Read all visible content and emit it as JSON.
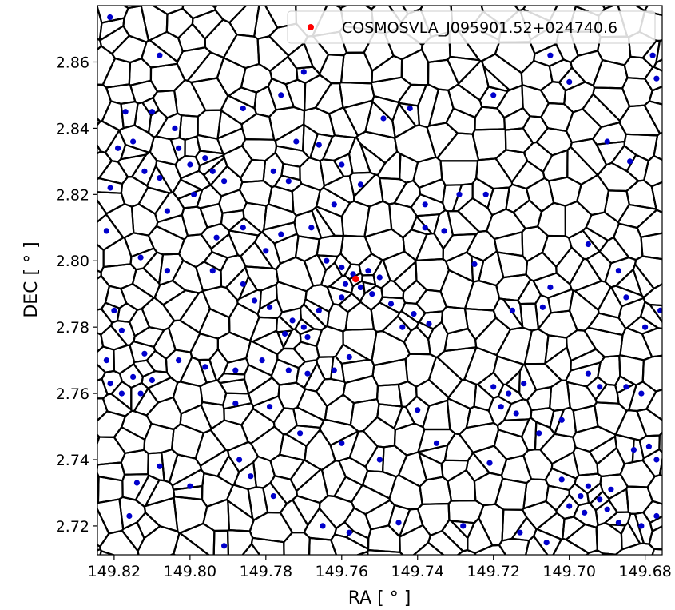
{
  "chart_data": {
    "type": "scatter",
    "title": "",
    "xlabel": "RA [ ° ]",
    "ylabel": "DEC [ ° ]",
    "xlim": [
      149.8244,
      149.6755
    ],
    "ylim": [
      2.7113,
      2.877
    ],
    "x_ticks": [
      "149.82",
      "149.80",
      "149.78",
      "149.76",
      "149.74",
      "149.72",
      "149.70",
      "149.68"
    ],
    "y_ticks": [
      "2.72",
      "2.74",
      "2.76",
      "2.78",
      "2.80",
      "2.82",
      "2.84",
      "2.86"
    ],
    "legend_position": "top-right",
    "grid": false,
    "background_overlay": "voronoi-tessellation",
    "colors": {
      "galaxies": "#0000cc",
      "target": "#ff0000",
      "edges": "#000000"
    },
    "series": [
      {
        "name": "COSMOSVLA_J095901.52+024740.6",
        "color": "#ff0000",
        "points": [
          {
            "x": 149.7563,
            "y": 2.7945
          }
        ]
      },
      {
        "name": "",
        "color": "#0000cc",
        "points": [
          {
            "x": 149.8211,
            "y": 2.8735
          },
          {
            "x": 149.817,
            "y": 2.845
          },
          {
            "x": 149.81,
            "y": 2.845
          },
          {
            "x": 149.808,
            "y": 2.862
          },
          {
            "x": 149.803,
            "y": 2.834
          },
          {
            "x": 149.8,
            "y": 2.829
          },
          {
            "x": 149.796,
            "y": 2.831
          },
          {
            "x": 149.794,
            "y": 2.827
          },
          {
            "x": 149.808,
            "y": 2.825
          },
          {
            "x": 149.812,
            "y": 2.827
          },
          {
            "x": 149.804,
            "y": 2.84
          },
          {
            "x": 149.799,
            "y": 2.82
          },
          {
            "x": 149.819,
            "y": 2.834
          },
          {
            "x": 149.821,
            "y": 2.822
          },
          {
            "x": 149.822,
            "y": 2.809
          },
          {
            "x": 149.815,
            "y": 2.836
          },
          {
            "x": 149.806,
            "y": 2.815
          },
          {
            "x": 149.791,
            "y": 2.824
          },
          {
            "x": 149.786,
            "y": 2.846
          },
          {
            "x": 149.776,
            "y": 2.85
          },
          {
            "x": 149.77,
            "y": 2.857
          },
          {
            "x": 149.772,
            "y": 2.836
          },
          {
            "x": 149.778,
            "y": 2.827
          },
          {
            "x": 149.774,
            "y": 2.824
          },
          {
            "x": 149.766,
            "y": 2.835
          },
          {
            "x": 149.76,
            "y": 2.829
          },
          {
            "x": 149.755,
            "y": 2.823
          },
          {
            "x": 149.762,
            "y": 2.817
          },
          {
            "x": 149.749,
            "y": 2.843
          },
          {
            "x": 149.742,
            "y": 2.846
          },
          {
            "x": 149.738,
            "y": 2.817
          },
          {
            "x": 149.733,
            "y": 2.809
          },
          {
            "x": 149.72,
            "y": 2.85
          },
          {
            "x": 149.705,
            "y": 2.862
          },
          {
            "x": 149.69,
            "y": 2.836
          },
          {
            "x": 149.684,
            "y": 2.83
          },
          {
            "x": 149.678,
            "y": 2.862
          },
          {
            "x": 149.677,
            "y": 2.855
          },
          {
            "x": 149.7,
            "y": 2.854
          },
          {
            "x": 149.729,
            "y": 2.82
          },
          {
            "x": 149.813,
            "y": 2.801
          },
          {
            "x": 149.806,
            "y": 2.797
          },
          {
            "x": 149.793,
            "y": 2.807
          },
          {
            "x": 149.786,
            "y": 2.81
          },
          {
            "x": 149.78,
            "y": 2.803
          },
          {
            "x": 149.776,
            "y": 2.808
          },
          {
            "x": 149.768,
            "y": 2.81
          },
          {
            "x": 149.764,
            "y": 2.8
          },
          {
            "x": 149.76,
            "y": 2.798
          },
          {
            "x": 149.759,
            "y": 2.793
          },
          {
            "x": 149.757,
            "y": 2.796
          },
          {
            "x": 149.755,
            "y": 2.792
          },
          {
            "x": 149.753,
            "y": 2.797
          },
          {
            "x": 149.752,
            "y": 2.79
          },
          {
            "x": 149.76,
            "y": 2.789
          },
          {
            "x": 149.75,
            "y": 2.795
          },
          {
            "x": 149.747,
            "y": 2.787
          },
          {
            "x": 149.766,
            "y": 2.785
          },
          {
            "x": 149.77,
            "y": 2.78
          },
          {
            "x": 149.773,
            "y": 2.782
          },
          {
            "x": 149.775,
            "y": 2.778
          },
          {
            "x": 149.769,
            "y": 2.777
          },
          {
            "x": 149.779,
            "y": 2.786
          },
          {
            "x": 149.783,
            "y": 2.788
          },
          {
            "x": 149.786,
            "y": 2.793
          },
          {
            "x": 149.794,
            "y": 2.797
          },
          {
            "x": 149.741,
            "y": 2.784
          },
          {
            "x": 149.737,
            "y": 2.781
          },
          {
            "x": 149.744,
            "y": 2.78
          },
          {
            "x": 149.738,
            "y": 2.81
          },
          {
            "x": 149.725,
            "y": 2.799
          },
          {
            "x": 149.715,
            "y": 2.785
          },
          {
            "x": 149.705,
            "y": 2.792
          },
          {
            "x": 149.707,
            "y": 2.786
          },
          {
            "x": 149.687,
            "y": 2.797
          },
          {
            "x": 149.685,
            "y": 2.789
          },
          {
            "x": 149.68,
            "y": 2.78
          },
          {
            "x": 149.676,
            "y": 2.785
          },
          {
            "x": 149.695,
            "y": 2.805
          },
          {
            "x": 149.722,
            "y": 2.82
          },
          {
            "x": 149.82,
            "y": 2.785
          },
          {
            "x": 149.818,
            "y": 2.779
          },
          {
            "x": 149.822,
            "y": 2.77
          },
          {
            "x": 149.821,
            "y": 2.763
          },
          {
            "x": 149.818,
            "y": 2.76
          },
          {
            "x": 149.815,
            "y": 2.765
          },
          {
            "x": 149.813,
            "y": 2.76
          },
          {
            "x": 149.81,
            "y": 2.764
          },
          {
            "x": 149.812,
            "y": 2.772
          },
          {
            "x": 149.803,
            "y": 2.77
          },
          {
            "x": 149.796,
            "y": 2.768
          },
          {
            "x": 149.788,
            "y": 2.767
          },
          {
            "x": 149.781,
            "y": 2.77
          },
          {
            "x": 149.774,
            "y": 2.767
          },
          {
            "x": 149.769,
            "y": 2.766
          },
          {
            "x": 149.762,
            "y": 2.767
          },
          {
            "x": 149.758,
            "y": 2.771
          },
          {
            "x": 149.788,
            "y": 2.757
          },
          {
            "x": 149.779,
            "y": 2.756
          },
          {
            "x": 149.771,
            "y": 2.748
          },
          {
            "x": 149.76,
            "y": 2.745
          },
          {
            "x": 149.75,
            "y": 2.74
          },
          {
            "x": 149.74,
            "y": 2.755
          },
          {
            "x": 149.735,
            "y": 2.745
          },
          {
            "x": 149.72,
            "y": 2.762
          },
          {
            "x": 149.716,
            "y": 2.76
          },
          {
            "x": 149.712,
            "y": 2.763
          },
          {
            "x": 149.718,
            "y": 2.756
          },
          {
            "x": 149.714,
            "y": 2.754
          },
          {
            "x": 149.708,
            "y": 2.748
          },
          {
            "x": 149.702,
            "y": 2.752
          },
          {
            "x": 149.695,
            "y": 2.766
          },
          {
            "x": 149.692,
            "y": 2.762
          },
          {
            "x": 149.685,
            "y": 2.762
          },
          {
            "x": 149.681,
            "y": 2.76
          },
          {
            "x": 149.679,
            "y": 2.744
          },
          {
            "x": 149.683,
            "y": 2.743
          },
          {
            "x": 149.677,
            "y": 2.74
          },
          {
            "x": 149.721,
            "y": 2.739
          },
          {
            "x": 149.814,
            "y": 2.733
          },
          {
            "x": 149.808,
            "y": 2.738
          },
          {
            "x": 149.8,
            "y": 2.732
          },
          {
            "x": 149.787,
            "y": 2.74
          },
          {
            "x": 149.784,
            "y": 2.735
          },
          {
            "x": 149.778,
            "y": 2.729
          },
          {
            "x": 149.765,
            "y": 2.72
          },
          {
            "x": 149.758,
            "y": 2.718
          },
          {
            "x": 149.745,
            "y": 2.721
          },
          {
            "x": 149.728,
            "y": 2.72
          },
          {
            "x": 149.713,
            "y": 2.718
          },
          {
            "x": 149.706,
            "y": 2.715
          },
          {
            "x": 149.7,
            "y": 2.726
          },
          {
            "x": 149.697,
            "y": 2.729
          },
          {
            "x": 149.695,
            "y": 2.732
          },
          {
            "x": 149.692,
            "y": 2.728
          },
          {
            "x": 149.69,
            "y": 2.725
          },
          {
            "x": 149.696,
            "y": 2.724
          },
          {
            "x": 149.689,
            "y": 2.731
          },
          {
            "x": 149.687,
            "y": 2.721
          },
          {
            "x": 149.681,
            "y": 2.72
          },
          {
            "x": 149.677,
            "y": 2.723
          },
          {
            "x": 149.702,
            "y": 2.734
          },
          {
            "x": 149.791,
            "y": 2.714
          },
          {
            "x": 149.816,
            "y": 2.723
          }
        ]
      }
    ]
  }
}
